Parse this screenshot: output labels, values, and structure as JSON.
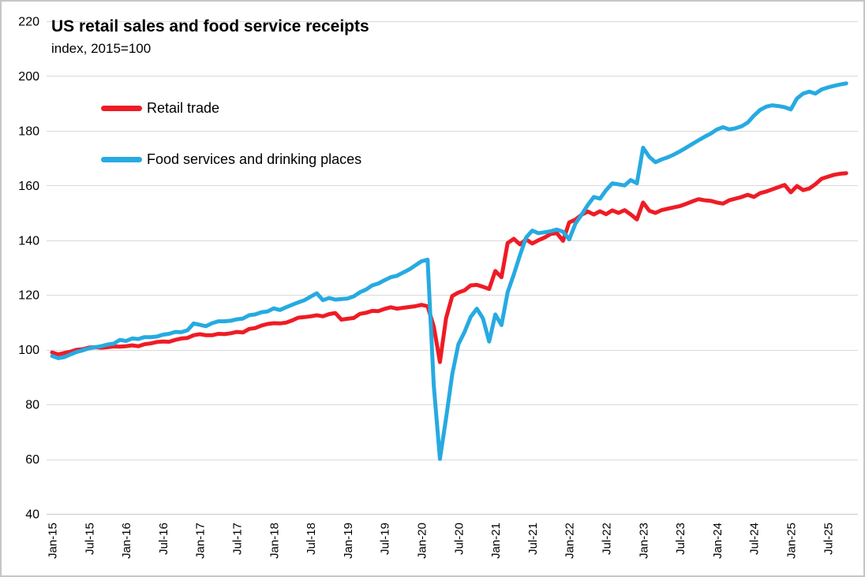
{
  "chart": {
    "title": "US retail sales and food service receipts",
    "subtitle": "index, 2015=100",
    "legend": [
      {
        "label": "Retail trade",
        "color": "#ee1c25"
      },
      {
        "label": "Food services and drinking places",
        "color": "#27aae1"
      }
    ]
  },
  "chart_data": {
    "type": "line",
    "title": "US retail sales and food service receipts",
    "subtitle": "index, 2015=100",
    "x_unit": "month",
    "x_start": "Jan-2015",
    "x_end": "Oct-2025",
    "x_months_per_point": 1,
    "x_tick_every_points": 6,
    "x_tick_labels": [
      "Jan-15",
      "Jul-15",
      "Jan-16",
      "Jul-16",
      "Jan-17",
      "Jul-17",
      "Jan-18",
      "Jul-18",
      "Jan-19",
      "Jul-19",
      "Jan-20",
      "Jul-20",
      "Jan-21",
      "Jul-21",
      "Jan-22",
      "Jul-22",
      "Jan-23",
      "Jul-23",
      "Jan-24",
      "Jul-24",
      "Jan-25",
      "Jul-25"
    ],
    "ylim": [
      40,
      220
    ],
    "y_ticks": [
      40,
      60,
      80,
      100,
      120,
      140,
      160,
      180,
      200,
      220
    ],
    "grid": "horizontal",
    "legend_position": "inside-top-left",
    "series": [
      {
        "name": "Retail trade",
        "color": "#ee1c25",
        "values": [
          99.0,
          98.3,
          98.8,
          99.3,
          100.0,
          100.2,
          100.8,
          100.9,
          100.7,
          100.9,
          101.2,
          101.1,
          101.3,
          101.6,
          101.3,
          102.0,
          102.3,
          102.8,
          103.0,
          102.9,
          103.6,
          104.1,
          104.3,
          105.3,
          105.7,
          105.3,
          105.3,
          105.8,
          105.7,
          106.0,
          106.5,
          106.3,
          107.6,
          107.9,
          108.8,
          109.4,
          109.7,
          109.6,
          109.9,
          110.7,
          111.7,
          111.9,
          112.2,
          112.6,
          112.2,
          113.0,
          113.4,
          111.0,
          111.3,
          111.6,
          113.1,
          113.5,
          114.2,
          114.1,
          114.9,
          115.5,
          115.0,
          115.3,
          115.6,
          115.9,
          116.4,
          115.9,
          108.5,
          95.5,
          111.5,
          119.6,
          120.9,
          121.7,
          123.5,
          123.7,
          123.0,
          122.2,
          128.8,
          126.5,
          139.0,
          140.5,
          138.5,
          140.3,
          138.8,
          140.0,
          141.0,
          142.3,
          142.6,
          139.8,
          146.5,
          147.5,
          149.3,
          150.5,
          149.4,
          150.6,
          149.5,
          150.9,
          150.0,
          151.0,
          149.4,
          147.6,
          153.8,
          150.8,
          150.0,
          151.0,
          151.5,
          152.0,
          152.5,
          153.3,
          154.2,
          155.0,
          154.6,
          154.4,
          153.8,
          153.4,
          154.6,
          155.2,
          155.8,
          156.6,
          155.8,
          157.2,
          157.8,
          158.6,
          159.4,
          160.2,
          157.5,
          159.8,
          158.3,
          158.9,
          160.5,
          162.5,
          163.2,
          163.9,
          164.3,
          164.5
        ]
      },
      {
        "name": "Food services and drinking places",
        "color": "#27aae1",
        "values": [
          97.7,
          96.9,
          97.3,
          98.3,
          99.2,
          99.8,
          100.5,
          100.9,
          101.3,
          101.9,
          102.2,
          103.6,
          103.2,
          104.1,
          103.9,
          104.6,
          104.6,
          104.8,
          105.5,
          105.8,
          106.5,
          106.4,
          107.1,
          109.6,
          109.1,
          108.6,
          109.7,
          110.4,
          110.4,
          110.6,
          111.1,
          111.4,
          112.6,
          112.9,
          113.7,
          114.0,
          115.1,
          114.5,
          115.5,
          116.4,
          117.3,
          118.1,
          119.4,
          120.6,
          118.1,
          118.9,
          118.3,
          118.5,
          118.7,
          119.5,
          121.0,
          122.0,
          123.5,
          124.2,
          125.4,
          126.5,
          127.0,
          128.2,
          129.3,
          130.8,
          132.3,
          132.9,
          87.0,
          60.1,
          75.0,
          91.0,
          102.0,
          106.5,
          112.0,
          115.0,
          111.4,
          103.0,
          112.9,
          109.0,
          121.0,
          127.5,
          134.5,
          141.0,
          143.5,
          142.6,
          142.9,
          143.3,
          143.9,
          143.1,
          140.3,
          146.0,
          149.3,
          152.8,
          155.8,
          155.2,
          158.3,
          160.8,
          160.4,
          160.0,
          162.0,
          160.8,
          173.8,
          170.5,
          168.5,
          169.5,
          170.3,
          171.3,
          172.5,
          173.8,
          175.2,
          176.5,
          177.8,
          179.0,
          180.5,
          181.3,
          180.5,
          180.9,
          181.6,
          183.0,
          185.5,
          187.6,
          188.8,
          189.3,
          189.0,
          188.6,
          187.8,
          191.8,
          193.6,
          194.3,
          193.6,
          195.1,
          195.8,
          196.4,
          196.9,
          197.3
        ]
      }
    ]
  }
}
